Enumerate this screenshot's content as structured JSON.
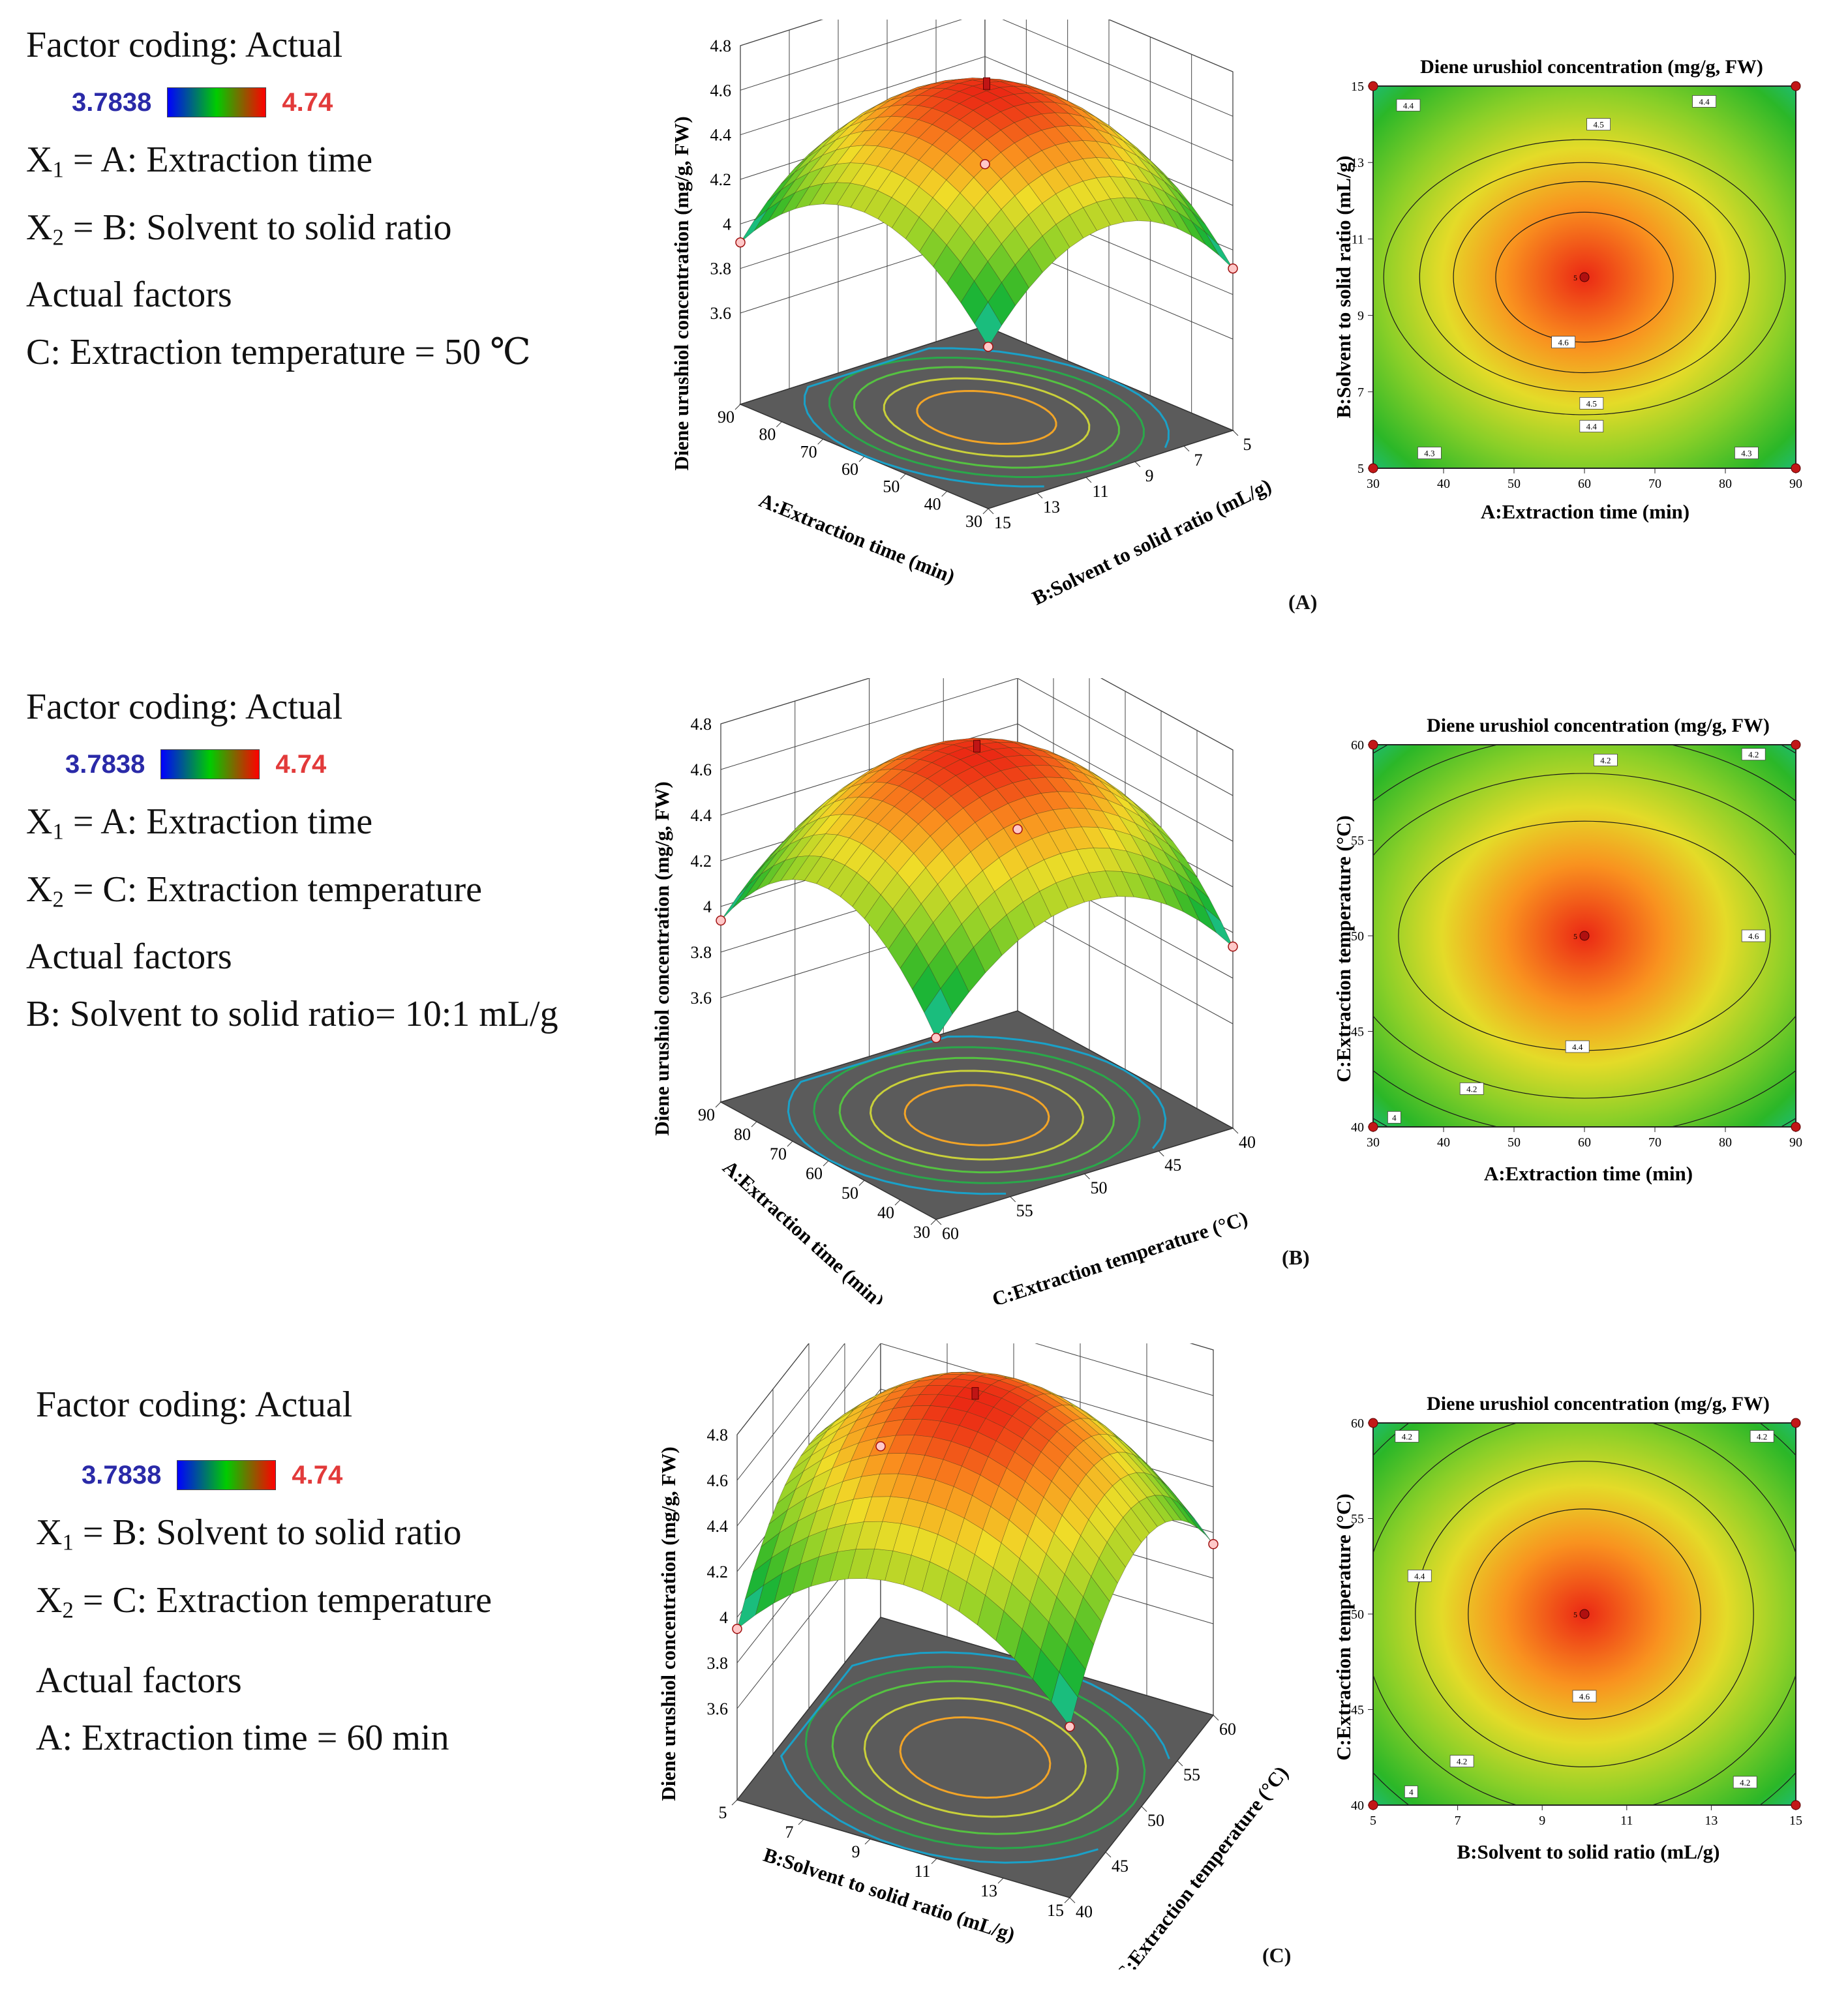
{
  "colorbar": {
    "low_color": "#0000ff",
    "mid_color": "#00cc00",
    "high_color": "#ff0000"
  },
  "panels": [
    {
      "id": "A",
      "panel_label": "(A)",
      "legend": {
        "factor_coding": "Factor coding: Actual",
        "cbar_min": "3.7838",
        "cbar_max": "4.74",
        "x1_prefix": "X",
        "x1_sub": "1",
        "x1_text": "= A: Extraction time",
        "x2_prefix": "X",
        "x2_sub": "2",
        "x2_text": "= B: Solvent to solid ratio",
        "actual_factors": "Actual factors",
        "fixed_factor": "C: Extraction temperature = 50 ℃"
      },
      "surface3d": {
        "zlabel": "Diene urushiol concentration (mg/g, FW)",
        "z_ticks": [
          "3.6",
          "3.8",
          "4",
          "4.2",
          "4.4",
          "4.6",
          "4.8"
        ],
        "left_axis_label": "A:Extraction time (min)",
        "left_ticks": [
          "90",
          "80",
          "70",
          "60",
          "50",
          "40",
          "30"
        ],
        "right_axis_label": "B:Solvent to solid ratio (mL/g)",
        "right_ticks": [
          "15",
          "13",
          "11",
          "9",
          "7",
          "5"
        ]
      },
      "chart_data": {
        "type": "heatmap",
        "title": "Diene urushiol concentration (mg/g, FW)",
        "xlabel": "A:Extraction time (min)",
        "ylabel": "B:Solvent to solid ratio (mL/g)",
        "x_ticks": [
          "30",
          "40",
          "50",
          "60",
          "70",
          "80",
          "90"
        ],
        "y_ticks": [
          "5",
          "7",
          "9",
          "11",
          "13",
          "15"
        ],
        "xlim": [
          30,
          90
        ],
        "ylim": [
          5,
          15
        ],
        "center": {
          "x": 60,
          "y": 10,
          "label": "5"
        },
        "z_min": 3.7838,
        "z_max": 4.74,
        "contour_levels": [
          {
            "level": 4.6,
            "rx": 0.42,
            "ry": 0.34
          },
          {
            "level": 4.5,
            "rx": 0.62,
            "ry": 0.5
          },
          {
            "level": 4.4,
            "rx": 0.78,
            "ry": 0.6
          },
          {
            "level": 4.3,
            "rx": 0.95,
            "ry": 0.72
          }
        ],
        "contour_labels": [
          {
            "text": "4.4",
            "x": 35,
            "y": 14.5
          },
          {
            "text": "4.5",
            "x": 62,
            "y": 14
          },
          {
            "text": "4.4",
            "x": 77,
            "y": 14.6
          },
          {
            "text": "4.6",
            "x": 57,
            "y": 8.3
          },
          {
            "text": "4.5",
            "x": 61,
            "y": 6.7
          },
          {
            "text": "4.4",
            "x": 61,
            "y": 6.1
          },
          {
            "text": "4.3",
            "x": 38,
            "y": 5.4
          },
          {
            "text": "4.3",
            "x": 83,
            "y": 5.4
          }
        ],
        "design_points": [
          {
            "x": 30,
            "y": 5
          },
          {
            "x": 90,
            "y": 5
          },
          {
            "x": 30,
            "y": 15
          },
          {
            "x": 90,
            "y": 15
          }
        ]
      }
    },
    {
      "id": "B",
      "panel_label": "(B)",
      "legend": {
        "factor_coding": "Factor coding: Actual",
        "cbar_min": "3.7838",
        "cbar_max": "4.74",
        "x1_prefix": "X",
        "x1_sub": "1",
        "x1_text": "= A: Extraction time",
        "x2_prefix": "X",
        "x2_sub": "2",
        "x2_text": "= C: Extraction temperature",
        "actual_factors": "Actual factors",
        "fixed_factor": "B: Solvent to solid ratio= 10:1 mL/g"
      },
      "surface3d": {
        "zlabel": "Diene urushiol concentration (mg/g, FW)",
        "z_ticks": [
          "3.6",
          "3.8",
          "4",
          "4.2",
          "4.4",
          "4.6",
          "4.8"
        ],
        "left_axis_label": "A:Extraction time (min)",
        "left_ticks": [
          "90",
          "80",
          "70",
          "60",
          "50",
          "40",
          "30"
        ],
        "right_axis_label": "C:Extraction temperature (°C)",
        "right_ticks": [
          "60",
          "55",
          "50",
          "45",
          "40"
        ]
      },
      "chart_data": {
        "type": "heatmap",
        "title": "Diene urushiol concentration (mg/g, FW)",
        "xlabel": "A:Extraction time (min)",
        "ylabel": "C:Extraction temperature (°C)",
        "x_ticks": [
          "30",
          "40",
          "50",
          "60",
          "70",
          "80",
          "90"
        ],
        "y_ticks": [
          "40",
          "45",
          "50",
          "55",
          "60"
        ],
        "xlim": [
          30,
          90
        ],
        "ylim": [
          40,
          60
        ],
        "center": {
          "x": 60,
          "y": 50,
          "label": "5"
        },
        "z_min": 3.7838,
        "z_max": 4.74,
        "contour_levels": [
          {
            "level": 4.6,
            "rx": 0.88,
            "ry": 0.6
          },
          {
            "level": 4.4,
            "rx": 1.15,
            "ry": 0.85
          },
          {
            "level": 4.2,
            "rx": 1.35,
            "ry": 1.05
          },
          {
            "level": 4.0,
            "rx": 1.55,
            "ry": 1.25
          }
        ],
        "contour_labels": [
          {
            "text": "4.2",
            "x": 63,
            "y": 59.2
          },
          {
            "text": "4.2",
            "x": 84,
            "y": 59.5
          },
          {
            "text": "4.6",
            "x": 84,
            "y": 50
          },
          {
            "text": "4.4",
            "x": 59,
            "y": 44.2
          },
          {
            "text": "4.2",
            "x": 44,
            "y": 42
          },
          {
            "text": "4",
            "x": 33,
            "y": 40.5
          }
        ],
        "design_points": [
          {
            "x": 30,
            "y": 40
          },
          {
            "x": 90,
            "y": 40
          },
          {
            "x": 30,
            "y": 60
          },
          {
            "x": 90,
            "y": 60
          }
        ]
      }
    },
    {
      "id": "C",
      "panel_label": "(C)",
      "legend": {
        "factor_coding": "Factor coding: Actual",
        "cbar_min": "3.7838",
        "cbar_max": "4.74",
        "x1_prefix": "X",
        "x1_sub": "1",
        "x1_text": "= B: Solvent to solid ratio",
        "x2_prefix": "X",
        "x2_sub": "2",
        "x2_text": "= C: Extraction temperature",
        "actual_factors": "Actual factors",
        "fixed_factor": "A: Extraction time = 60 min"
      },
      "surface3d": {
        "zlabel": "Diene urushiol concentration (mg/g, FW)",
        "z_ticks": [
          "3.6",
          "3.8",
          "4",
          "4.2",
          "4.4",
          "4.6",
          "4.8"
        ],
        "left_axis_label": "B:Solvent to solid ratio (mL/g)",
        "left_ticks": [
          "5",
          "7",
          "9",
          "11",
          "13",
          "15"
        ],
        "right_axis_label": "C:Extraction temperature (°C)",
        "right_ticks": [
          "40",
          "45",
          "50",
          "55",
          "60"
        ]
      },
      "chart_data": {
        "type": "heatmap",
        "title": "Diene urushiol concentration (mg/g, FW)",
        "xlabel": "B:Solvent to solid ratio (mL/g)",
        "ylabel": "C:Extraction temperature (°C)",
        "x_ticks": [
          "5",
          "7",
          "9",
          "11",
          "13",
          "15"
        ],
        "y_ticks": [
          "40",
          "45",
          "50",
          "55",
          "60"
        ],
        "xlim": [
          5,
          15
        ],
        "ylim": [
          40,
          60
        ],
        "center": {
          "x": 10,
          "y": 50,
          "label": "5"
        },
        "z_min": 3.7838,
        "z_max": 4.74,
        "contour_levels": [
          {
            "level": 4.6,
            "rx": 0.55,
            "ry": 0.55
          },
          {
            "level": 4.4,
            "rx": 0.8,
            "ry": 0.8
          },
          {
            "level": 4.2,
            "rx": 1.05,
            "ry": 1.05
          },
          {
            "level": 4.0,
            "rx": 1.3,
            "ry": 1.3
          }
        ],
        "contour_labels": [
          {
            "text": "4.2",
            "x": 5.8,
            "y": 59.3
          },
          {
            "text": "4.2",
            "x": 14.2,
            "y": 59.3
          },
          {
            "text": "4.4",
            "x": 6.1,
            "y": 52
          },
          {
            "text": "4.6",
            "x": 10,
            "y": 45.7
          },
          {
            "text": "4.2",
            "x": 7.1,
            "y": 42.3
          },
          {
            "text": "4",
            "x": 5.9,
            "y": 40.7
          },
          {
            "text": "4.2",
            "x": 13.8,
            "y": 41.2
          }
        ],
        "design_points": [
          {
            "x": 5,
            "y": 40
          },
          {
            "x": 15,
            "y": 40
          },
          {
            "x": 5,
            "y": 60
          },
          {
            "x": 15,
            "y": 60
          }
        ]
      }
    }
  ]
}
